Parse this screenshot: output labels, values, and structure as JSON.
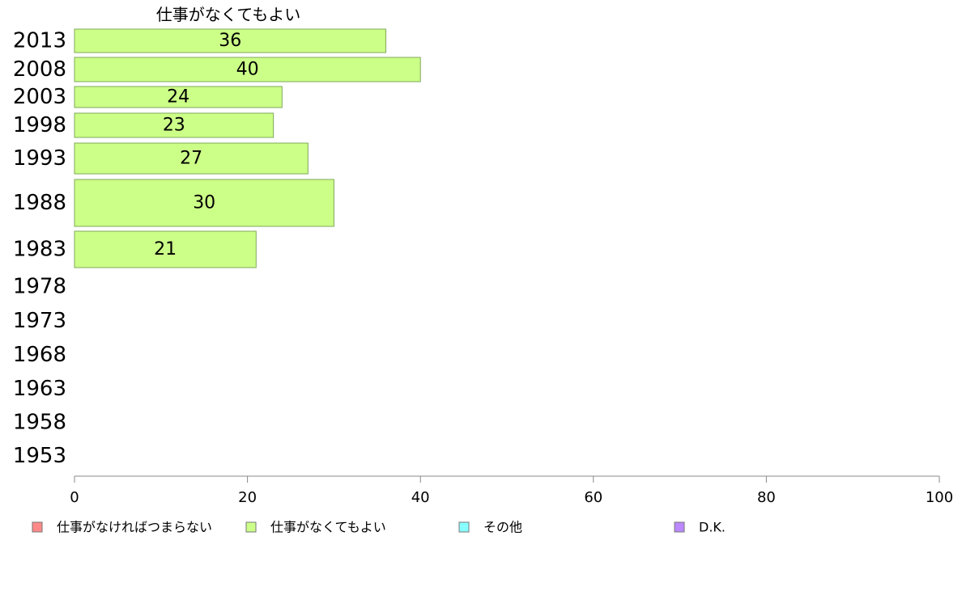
{
  "chart_data": {
    "type": "bar",
    "orientation": "horizontal",
    "title": "仕事がなくてもよい",
    "categories": [
      "2013",
      "2008",
      "2003",
      "1998",
      "1993",
      "1988",
      "1983",
      "1978",
      "1973",
      "1968",
      "1963",
      "1958",
      "1953"
    ],
    "series": [
      {
        "name": "仕事がなくてもよい",
        "color": "#ccff88",
        "values": [
          36,
          40,
          24,
          23,
          27,
          30,
          21,
          null,
          null,
          null,
          null,
          null,
          null
        ]
      }
    ],
    "xlim": [
      0,
      100
    ],
    "xticks": [
      "0",
      "20",
      "40",
      "60",
      "80",
      "100"
    ],
    "grid": false,
    "legend_position": "bottom",
    "legend": [
      {
        "label": "仕事がなければつまらない",
        "color": "#ff8888"
      },
      {
        "label": "仕事がなくてもよい",
        "color": "#ccff88"
      },
      {
        "label": "その他",
        "color": "#88ffff"
      },
      {
        "label": "D.K.",
        "color": "#bb88ff"
      }
    ]
  }
}
